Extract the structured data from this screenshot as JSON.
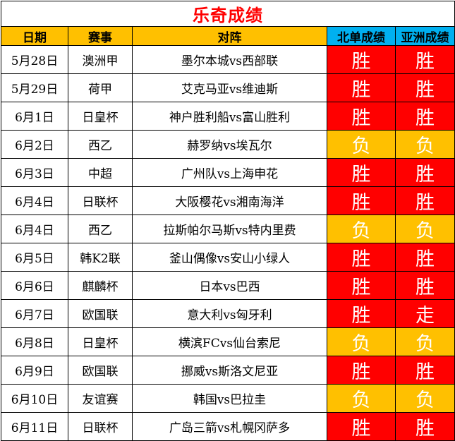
{
  "title": "乐奇成绩",
  "headers": {
    "date": "日期",
    "league": "赛事",
    "match": "对阵",
    "beidan": "北单成绩",
    "asia": "亚洲成绩"
  },
  "colors": {
    "win": "#ff0000",
    "lose": "#ffc000",
    "header_main": "#ffc000",
    "header_result": "#00b0f0",
    "title": "#ff0000"
  },
  "rows": [
    {
      "date": "5月28日",
      "league": "澳洲甲",
      "match": "墨尔本城vs西部联",
      "beidan": "胜",
      "asia": "胜"
    },
    {
      "date": "5月29日",
      "league": "荷甲",
      "match": "艾克马亚vs维迪斯",
      "beidan": "胜",
      "asia": "胜"
    },
    {
      "date": "6月1日",
      "league": "日皇杯",
      "match": "神户胜利船vs富山胜利",
      "beidan": "胜",
      "asia": "胜"
    },
    {
      "date": "6月2日",
      "league": "西乙",
      "match": "赫罗纳vs埃瓦尔",
      "beidan": "负",
      "asia": "负"
    },
    {
      "date": "6月3日",
      "league": "中超",
      "match": "广州队vs上海申花",
      "beidan": "胜",
      "asia": "胜"
    },
    {
      "date": "6月4日",
      "league": "日联杯",
      "match": "大阪樱花vs湘南海洋",
      "beidan": "胜",
      "asia": "胜"
    },
    {
      "date": "6月4日",
      "league": "西乙",
      "match": "拉斯帕尔马斯vs特内里费",
      "beidan": "负",
      "asia": "负"
    },
    {
      "date": "6月5日",
      "league": "韩K2联",
      "match": "釜山偶像vs安山小绿人",
      "beidan": "胜",
      "asia": "胜"
    },
    {
      "date": "6月6日",
      "league": "麒麟杯",
      "match": "日本vs巴西",
      "beidan": "胜",
      "asia": "胜"
    },
    {
      "date": "6月7日",
      "league": "欧国联",
      "match": "意大利vs匈牙利",
      "beidan": "胜",
      "asia": "走"
    },
    {
      "date": "6月8日",
      "league": "日皇杯",
      "match": "横滨FCvs仙台索尼",
      "beidan": "负",
      "asia": "负"
    },
    {
      "date": "6月9日",
      "league": "欧国联",
      "match": "挪威vs斯洛文尼亚",
      "beidan": "胜",
      "asia": "胜"
    },
    {
      "date": "6月10日",
      "league": "友谊赛",
      "match": "韩国vs巴拉圭",
      "beidan": "负",
      "asia": "负"
    },
    {
      "date": "6月11日",
      "league": "日联杯",
      "match": "广岛三箭vs札幌冈萨多",
      "beidan": "胜",
      "asia": "胜"
    }
  ]
}
